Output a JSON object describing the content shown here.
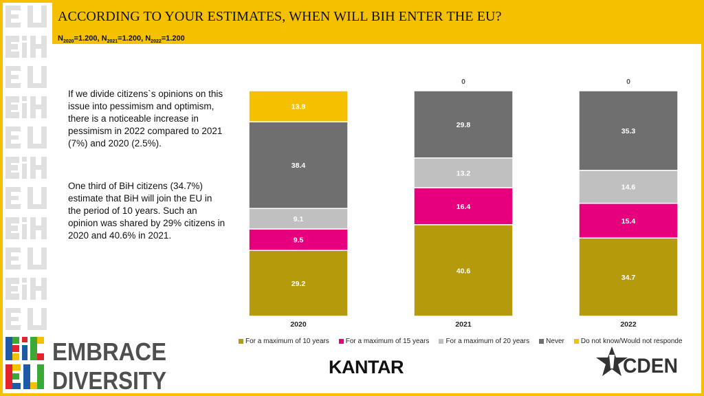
{
  "header": {
    "title": "ACCORDING TO YOUR ESTIMATES, WHEN WILL BIH ENTER THE EU?",
    "sample": [
      {
        "label": "N",
        "sub": "2020",
        "value": "=1.200, "
      },
      {
        "label": "N",
        "sub": "2021",
        "value": "=1.200, "
      },
      {
        "label": "N",
        "sub": "2022",
        "value": "=1.200"
      }
    ]
  },
  "commentary": {
    "paragraph_1": "If we divide citizens`s opinions on this issue into pessimism and optimism, there is a noticeable increase in pessimism in 2022 compared to 2021 (7%) and 2020 (2.5%).",
    "paragraph_2": "One third of BiH citizens (34.7%) estimate that BiH will join the EU in the period of 10 years. Such an opinion was shared by 29% citizens in 2020 and 40.6% in 2021."
  },
  "chart_data": {
    "type": "bar",
    "stacked": true,
    "title": "ACCORDING TO YOUR ESTIMATES, WHEN WILL BIH ENTER THE EU?",
    "categories": [
      "2020",
      "2021",
      "2022"
    ],
    "series": [
      {
        "name": "For a maximum of 10 years",
        "color": "#b59a0c",
        "values": [
          29.2,
          40.6,
          34.7
        ]
      },
      {
        "name": "For a maximum of 15 years",
        "color": "#e6007e",
        "values": [
          9.5,
          16.4,
          15.4
        ]
      },
      {
        "name": "For a maximum of 20 years",
        "color": "#c0c0c0",
        "values": [
          9.1,
          13.2,
          14.6
        ]
      },
      {
        "name": "Never",
        "color": "#6f6f6f",
        "values": [
          38.4,
          29.8,
          35.3
        ]
      },
      {
        "name": "Do not know/Would not responde",
        "color": "#f5c000",
        "values": [
          13.8,
          0,
          0
        ]
      }
    ],
    "ylim": [
      0,
      100
    ],
    "xlabel": "",
    "ylabel": "",
    "legend": "bottom"
  },
  "logos": {
    "embrace_line1": "EMBRACE",
    "embrace_line2": "DIVERSITY",
    "kantar": "KANTAR",
    "cden": "CDEN"
  },
  "colors": {
    "accent_yellow": "#f5c000",
    "gray_dark": "#6f6f6f",
    "gray_light": "#c0c0c0",
    "magenta": "#e6007e",
    "olive": "#b59a0c",
    "logo_blue": "#1f5aa6",
    "logo_red": "#e3232c",
    "logo_green": "#3aa935"
  }
}
